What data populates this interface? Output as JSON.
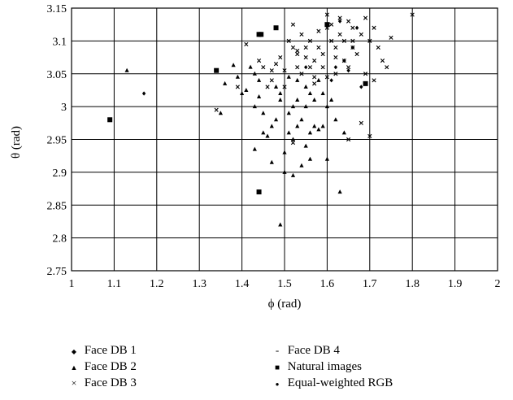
{
  "chart_data": {
    "type": "scatter",
    "xlabel": "ϕ (rad)",
    "ylabel": "θ (rad)",
    "xlim": [
      1,
      2
    ],
    "ylim": [
      2.75,
      3.15
    ],
    "x_ticks": [
      1,
      1.1,
      1.2,
      1.3,
      1.4,
      1.5,
      1.6,
      1.7,
      1.8,
      1.9,
      2
    ],
    "y_ticks": [
      2.75,
      2.8,
      2.85,
      2.9,
      2.95,
      3,
      3.05,
      3.1,
      3.15
    ],
    "grid": true,
    "legend_position": "bottom",
    "series": [
      {
        "name": "Face DB 1",
        "symbol": "◆",
        "marker": "diamond",
        "points": [
          [
            1.17,
            3.02
          ],
          [
            1.63,
            3.13
          ],
          [
            1.62,
            3.06
          ],
          [
            1.64,
            3.07
          ],
          [
            1.66,
            3.09
          ],
          [
            1.68,
            3.03
          ],
          [
            1.55,
            3.06
          ],
          [
            1.65,
            3.055
          ],
          [
            1.67,
            3.12
          ],
          [
            1.61,
            3.04
          ]
        ]
      },
      {
        "name": "Face DB 2",
        "symbol": "▲",
        "marker": "triangle",
        "points": [
          [
            1.13,
            3.055
          ],
          [
            1.36,
            3.035
          ],
          [
            1.38,
            3.063
          ],
          [
            1.39,
            3.045
          ],
          [
            1.4,
            3.02
          ],
          [
            1.41,
            3.025
          ],
          [
            1.42,
            3.06
          ],
          [
            1.43,
            3.05
          ],
          [
            1.43,
            3.0
          ],
          [
            1.44,
            3.04
          ],
          [
            1.44,
            3.015
          ],
          [
            1.45,
            2.96
          ],
          [
            1.45,
            2.99
          ],
          [
            1.46,
            2.955
          ],
          [
            1.47,
            2.97
          ],
          [
            1.47,
            2.915
          ],
          [
            1.48,
            2.98
          ],
          [
            1.48,
            3.03
          ],
          [
            1.49,
            3.01
          ],
          [
            1.49,
            2.82
          ],
          [
            1.49,
            3.02
          ],
          [
            1.5,
            2.93
          ],
          [
            1.5,
            2.9
          ],
          [
            1.51,
            2.96
          ],
          [
            1.51,
            2.99
          ],
          [
            1.52,
            3.0
          ],
          [
            1.52,
            2.95
          ],
          [
            1.52,
            2.895
          ],
          [
            1.53,
            3.01
          ],
          [
            1.53,
            2.97
          ],
          [
            1.53,
            3.04
          ],
          [
            1.54,
            2.91
          ],
          [
            1.54,
            2.98
          ],
          [
            1.55,
            3.03
          ],
          [
            1.55,
            3.0
          ],
          [
            1.55,
            2.94
          ],
          [
            1.56,
            2.96
          ],
          [
            1.56,
            2.92
          ],
          [
            1.57,
            2.97
          ],
          [
            1.57,
            3.01
          ],
          [
            1.58,
            2.965
          ],
          [
            1.58,
            3.04
          ],
          [
            1.59,
            2.97
          ],
          [
            1.59,
            3.02
          ],
          [
            1.6,
            3.0
          ],
          [
            1.6,
            2.92
          ],
          [
            1.61,
            3.01
          ],
          [
            1.62,
            2.98
          ],
          [
            1.63,
            2.87
          ],
          [
            1.43,
            2.935
          ],
          [
            1.64,
            2.96
          ],
          [
            1.35,
            2.99
          ],
          [
            1.56,
            3.02
          ],
          [
            1.51,
            3.045
          ]
        ]
      },
      {
        "name": "Face DB 3",
        "symbol": "×",
        "marker": "cross",
        "points": [
          [
            1.34,
            2.995
          ],
          [
            1.39,
            3.03
          ],
          [
            1.41,
            3.095
          ],
          [
            1.44,
            3.07
          ],
          [
            1.45,
            3.06
          ],
          [
            1.46,
            3.03
          ],
          [
            1.47,
            3.04
          ],
          [
            1.48,
            3.065
          ],
          [
            1.49,
            3.075
          ],
          [
            1.5,
            3.055
          ],
          [
            1.51,
            3.1
          ],
          [
            1.52,
            3.09
          ],
          [
            1.52,
            3.125
          ],
          [
            1.53,
            3.08
          ],
          [
            1.53,
            3.06
          ],
          [
            1.54,
            3.11
          ],
          [
            1.54,
            3.05
          ],
          [
            1.55,
            3.075
          ],
          [
            1.55,
            3.09
          ],
          [
            1.56,
            3.06
          ],
          [
            1.56,
            3.1
          ],
          [
            1.57,
            3.07
          ],
          [
            1.57,
            3.045
          ],
          [
            1.58,
            3.09
          ],
          [
            1.58,
            3.115
          ],
          [
            1.59,
            3.06
          ],
          [
            1.59,
            3.08
          ],
          [
            1.6,
            3.14
          ],
          [
            1.6,
            3.12
          ],
          [
            1.61,
            3.1
          ],
          [
            1.61,
            3.125
          ],
          [
            1.62,
            3.09
          ],
          [
            1.62,
            3.05
          ],
          [
            1.63,
            3.11
          ],
          [
            1.63,
            3.135
          ],
          [
            1.64,
            3.07
          ],
          [
            1.64,
            3.1
          ],
          [
            1.65,
            3.13
          ],
          [
            1.65,
            3.06
          ],
          [
            1.66,
            3.09
          ],
          [
            1.66,
            3.12
          ],
          [
            1.67,
            3.08
          ],
          [
            1.68,
            3.11
          ],
          [
            1.69,
            3.135
          ],
          [
            1.69,
            3.05
          ],
          [
            1.7,
            3.1
          ],
          [
            1.71,
            3.12
          ],
          [
            1.71,
            3.04
          ],
          [
            1.72,
            3.09
          ],
          [
            1.73,
            3.07
          ],
          [
            1.74,
            3.06
          ],
          [
            1.75,
            3.105
          ],
          [
            1.8,
            3.14
          ],
          [
            1.68,
            2.975
          ],
          [
            1.65,
            2.95
          ],
          [
            1.7,
            2.955
          ],
          [
            1.52,
            2.945
          ],
          [
            1.57,
            3.035
          ],
          [
            1.6,
            3.045
          ],
          [
            1.53,
            3.085
          ],
          [
            1.47,
            3.055
          ],
          [
            1.5,
            3.03
          ],
          [
            1.62,
            3.075
          ],
          [
            1.66,
            3.1
          ]
        ]
      },
      {
        "name": "Face DB 4",
        "symbol": "-",
        "marker": "dash",
        "points": []
      },
      {
        "name": "Natural images",
        "symbol": "■",
        "marker": "square",
        "points": [
          [
            1.09,
            2.98
          ],
          [
            1.34,
            3.055
          ],
          [
            1.44,
            3.11
          ],
          [
            1.445,
            3.11
          ],
          [
            1.48,
            3.12
          ],
          [
            1.6,
            3.125
          ],
          [
            1.69,
            3.035
          ],
          [
            1.44,
            2.87
          ]
        ]
      },
      {
        "name": "Equal-weighted RGB",
        "symbol": "●",
        "marker": "circle",
        "points": []
      }
    ]
  }
}
